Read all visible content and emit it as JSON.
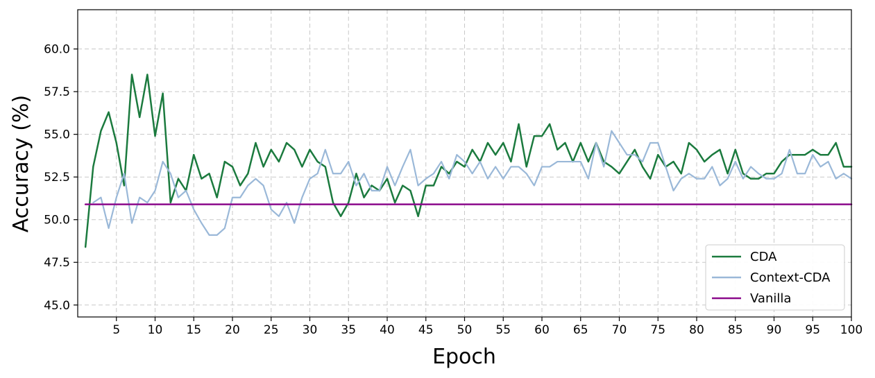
{
  "chart_data": {
    "type": "line",
    "xlabel": "Epoch",
    "ylabel": "Accuracy (%)",
    "xlim": [
      0,
      100
    ],
    "ylim": [
      44.3,
      62.3
    ],
    "grid": true,
    "legend_position": "bottom-right",
    "x_ticks": [
      5,
      10,
      15,
      20,
      25,
      30,
      35,
      40,
      45,
      50,
      55,
      60,
      65,
      70,
      75,
      80,
      85,
      90,
      95,
      100
    ],
    "y_ticks": [
      45.0,
      47.5,
      50.0,
      52.5,
      55.0,
      57.5,
      60.0
    ],
    "x_tick_labels": [
      "5",
      "10",
      "15",
      "20",
      "25",
      "30",
      "35",
      "40",
      "45",
      "50",
      "55",
      "60",
      "65",
      "70",
      "75",
      "80",
      "85",
      "90",
      "95",
      "100"
    ],
    "y_tick_labels": [
      "45.0",
      "47.5",
      "50.0",
      "52.5",
      "55.0",
      "57.5",
      "60.0"
    ],
    "series": [
      {
        "name": "CDA",
        "color": "#1b7a3e",
        "x": [
          1,
          2,
          3,
          4,
          5,
          6,
          7,
          8,
          9,
          10,
          11,
          12,
          13,
          14,
          15,
          16,
          17,
          18,
          19,
          20,
          21,
          22,
          23,
          24,
          25,
          26,
          27,
          28,
          29,
          30,
          31,
          32,
          33,
          34,
          35,
          36,
          37,
          38,
          39,
          40,
          41,
          42,
          43,
          44,
          45,
          46,
          47,
          48,
          49,
          50,
          51,
          52,
          53,
          54,
          55,
          56,
          57,
          58,
          59,
          60,
          61,
          62,
          63,
          64,
          65,
          66,
          67,
          68,
          69,
          70,
          71,
          72,
          73,
          74,
          75,
          76,
          77,
          78,
          79,
          80,
          81,
          82,
          83,
          84,
          85,
          86,
          87,
          88,
          89,
          90,
          91,
          92,
          93,
          94,
          95,
          96,
          97,
          98,
          99,
          100
        ],
        "values": [
          48.4,
          53.1,
          55.2,
          56.3,
          54.5,
          52.0,
          58.5,
          56.0,
          58.5,
          54.9,
          57.4,
          51.0,
          52.4,
          51.7,
          53.8,
          52.4,
          52.7,
          51.3,
          53.4,
          53.1,
          52.0,
          52.7,
          54.5,
          53.1,
          54.1,
          53.4,
          54.5,
          54.1,
          53.1,
          54.1,
          53.4,
          53.1,
          51.0,
          50.2,
          51.0,
          52.7,
          51.3,
          52.0,
          51.7,
          52.4,
          51.0,
          52.0,
          51.7,
          50.2,
          52.0,
          52.0,
          53.1,
          52.7,
          53.4,
          53.1,
          54.1,
          53.4,
          54.5,
          53.8,
          54.5,
          53.4,
          55.6,
          53.1,
          54.9,
          54.9,
          55.6,
          54.1,
          54.5,
          53.4,
          54.5,
          53.4,
          54.5,
          53.4,
          53.1,
          52.7,
          53.4,
          54.1,
          53.1,
          52.4,
          53.8,
          53.1,
          53.4,
          52.7,
          54.5,
          54.1,
          53.4,
          53.8,
          54.1,
          52.7,
          54.1,
          52.7,
          52.4,
          52.4,
          52.7,
          52.7,
          53.4,
          53.8,
          53.8,
          53.8,
          54.1,
          53.8,
          53.8,
          54.5,
          53.1,
          53.1
        ]
      },
      {
        "name": "Context-CDA",
        "color": "#9ab8d8",
        "x": [
          2,
          3,
          4,
          5,
          6,
          7,
          8,
          9,
          10,
          11,
          12,
          13,
          14,
          15,
          16,
          17,
          18,
          19,
          20,
          21,
          22,
          23,
          24,
          25,
          26,
          27,
          28,
          29,
          30,
          31,
          32,
          33,
          34,
          35,
          36,
          37,
          38,
          39,
          40,
          41,
          42,
          43,
          44,
          45,
          46,
          47,
          48,
          49,
          50,
          51,
          52,
          53,
          54,
          55,
          56,
          57,
          58,
          59,
          60,
          61,
          62,
          63,
          64,
          65,
          66,
          67,
          68,
          69,
          70,
          71,
          72,
          73,
          74,
          75,
          76,
          77,
          78,
          79,
          80,
          81,
          82,
          83,
          84,
          85,
          86,
          87,
          88,
          89,
          90,
          91,
          92,
          93,
          94,
          95,
          96,
          97,
          98,
          99,
          100
        ],
        "values": [
          51.0,
          51.3,
          49.5,
          51.3,
          52.7,
          49.8,
          51.3,
          51.0,
          51.7,
          53.4,
          52.7,
          51.3,
          51.7,
          50.6,
          49.8,
          49.1,
          49.1,
          49.5,
          51.3,
          51.3,
          52.0,
          52.4,
          52.0,
          50.6,
          50.2,
          51.0,
          49.8,
          51.3,
          52.4,
          52.7,
          54.1,
          52.7,
          52.7,
          53.4,
          52.0,
          52.7,
          51.7,
          51.7,
          53.1,
          52.0,
          53.1,
          54.1,
          52.0,
          52.4,
          52.7,
          53.4,
          52.4,
          53.8,
          53.4,
          52.7,
          53.4,
          52.4,
          53.1,
          52.4,
          53.1,
          53.1,
          52.7,
          52.0,
          53.1,
          53.1,
          53.4,
          53.4,
          53.4,
          53.4,
          52.4,
          54.5,
          53.1,
          55.2,
          54.5,
          53.8,
          53.8,
          53.4,
          54.5,
          54.5,
          53.1,
          51.7,
          52.4,
          52.7,
          52.4,
          52.4,
          53.1,
          52.0,
          52.4,
          53.4,
          52.4,
          53.1,
          52.7,
          52.4,
          52.4,
          52.7,
          54.1,
          52.7,
          52.7,
          53.8,
          53.1,
          53.4,
          52.4,
          52.7,
          52.4
        ]
      },
      {
        "name": "Vanilla",
        "color": "#8b0a8b",
        "x": [
          1,
          100
        ],
        "values": [
          50.9,
          50.9
        ]
      }
    ]
  }
}
